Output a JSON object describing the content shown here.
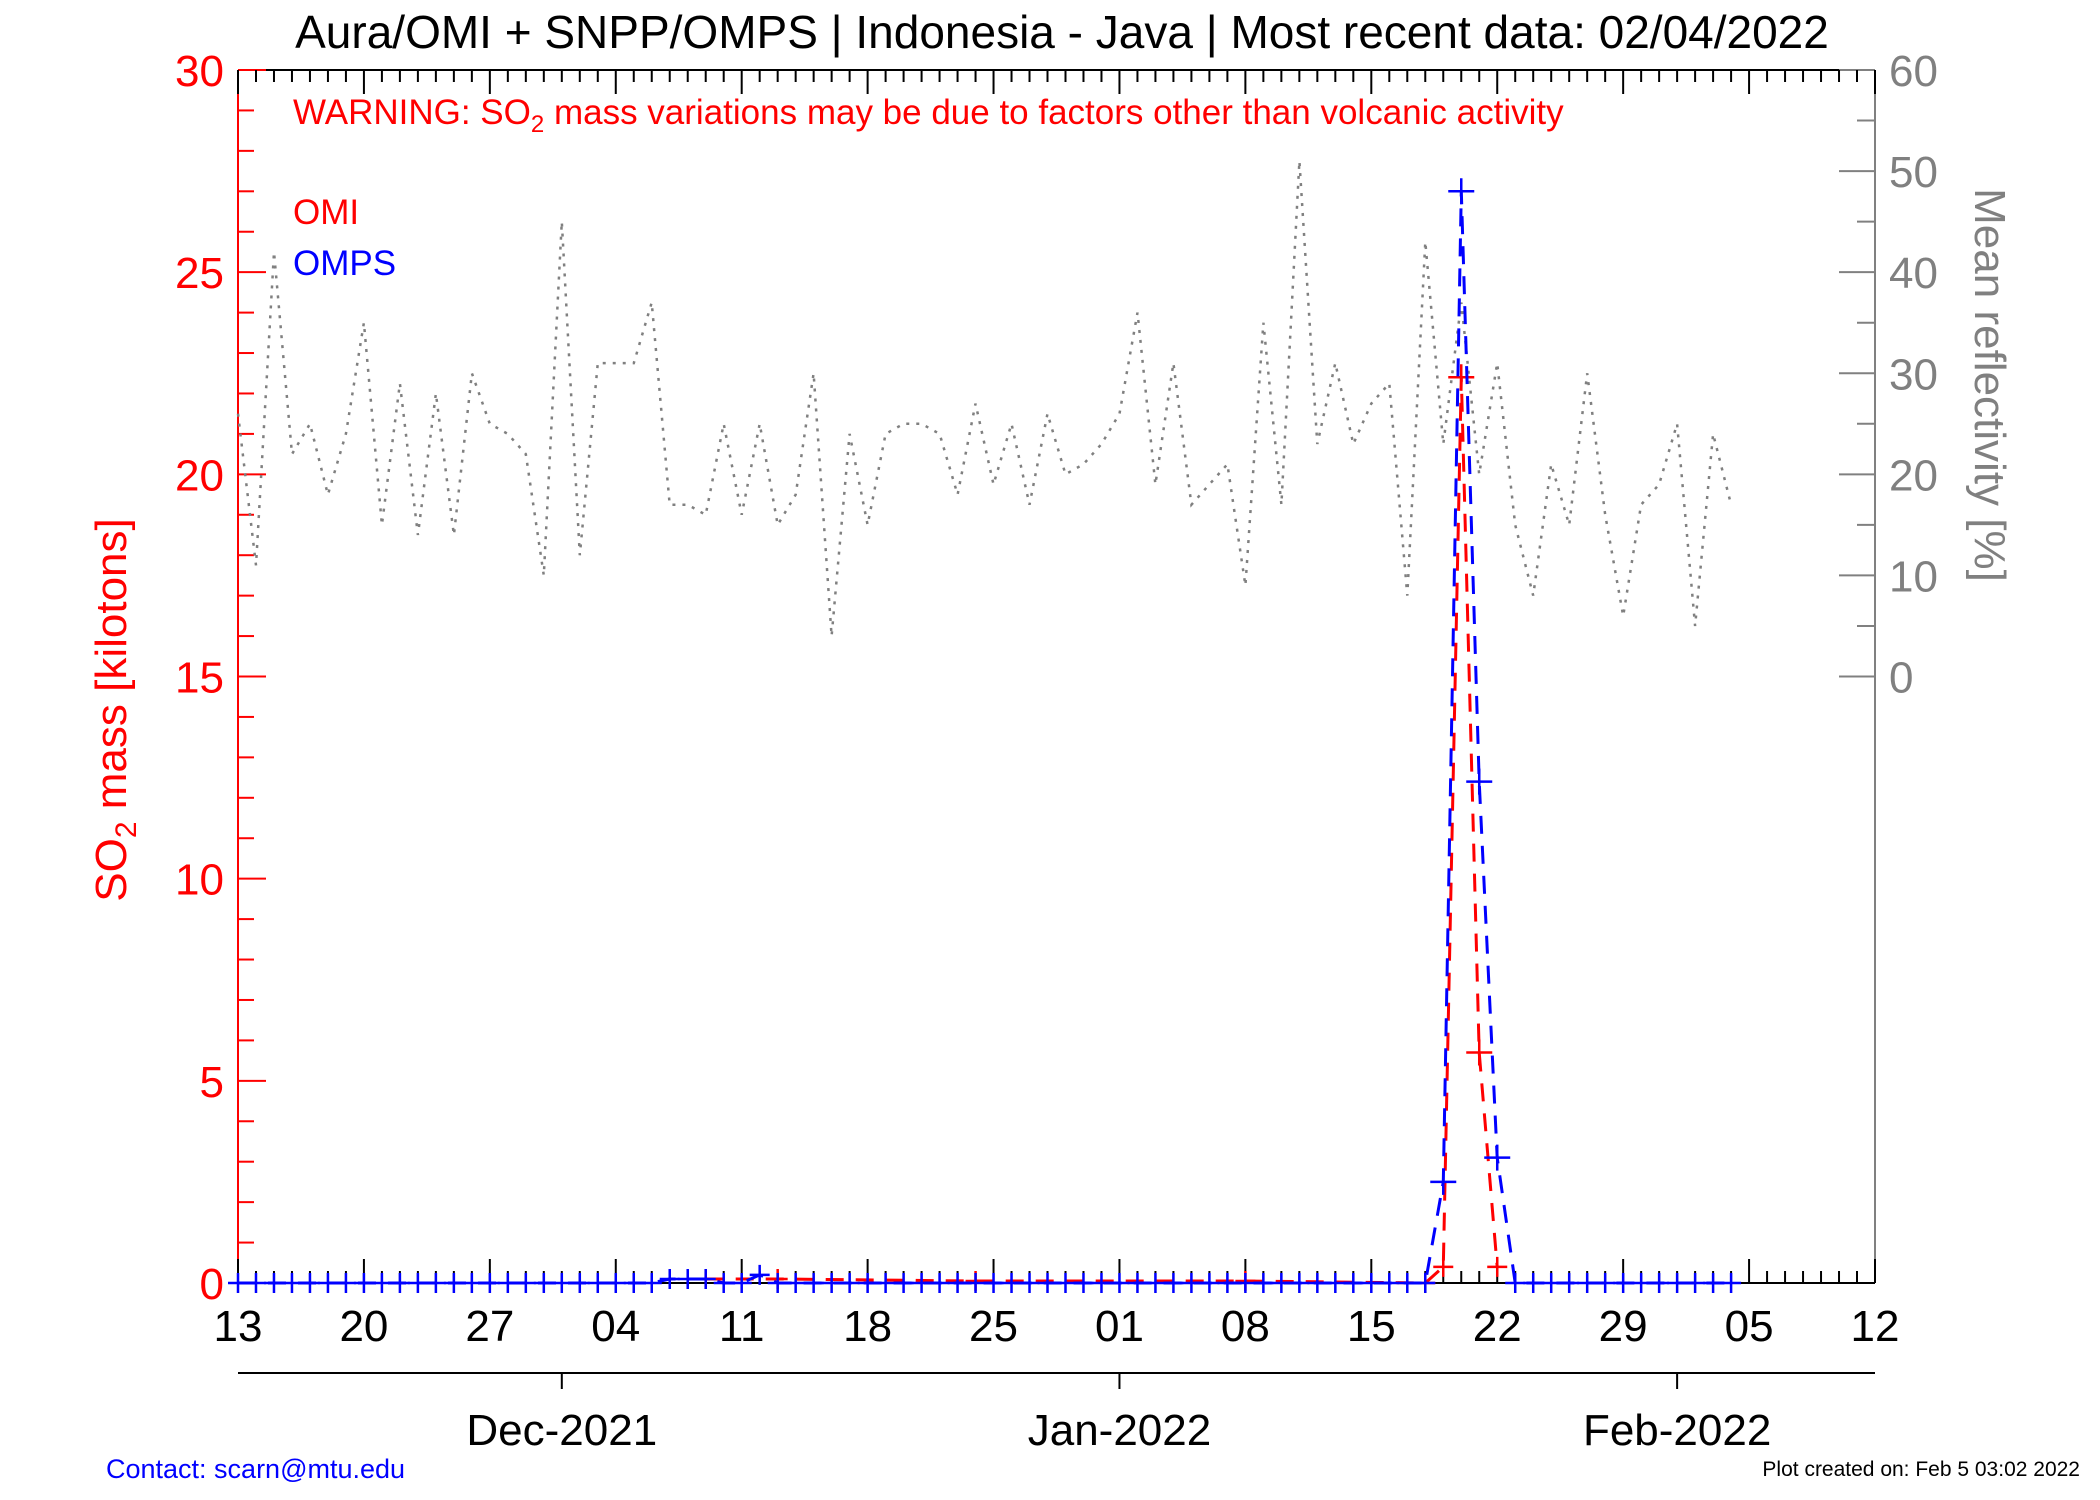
{
  "chart_data": {
    "type": "line",
    "title": "Aura/OMI + SNPP/OMPS | Indonesia - Java | Most recent data: 02/04/2022",
    "warning": {
      "prefix": "WARNING: SO",
      "subscript": "2",
      "suffix": " mass variations may be due to factors other than volcanic activity"
    },
    "ylabel_left": {
      "prefix": "SO",
      "subscript": "2",
      "suffix": " mass [kilotons]"
    },
    "ylabel_right": "Mean reflectivity [%]",
    "xlim": [
      "2021-11-13",
      "2022-02-12"
    ],
    "ylim_left": [
      0,
      30
    ],
    "ylim_right": [
      0,
      60
    ],
    "right_axis_zero_at_left_value": 15,
    "grid": false,
    "legend_position": "top-left",
    "x_ticks": [
      {
        "date": "2021-11-13",
        "label": "13"
      },
      {
        "date": "2021-11-20",
        "label": "20"
      },
      {
        "date": "2021-11-27",
        "label": "27"
      },
      {
        "date": "2021-12-04",
        "label": "04"
      },
      {
        "date": "2021-12-11",
        "label": "11"
      },
      {
        "date": "2021-12-18",
        "label": "18"
      },
      {
        "date": "2021-12-25",
        "label": "25"
      },
      {
        "date": "2022-01-01",
        "label": "01"
      },
      {
        "date": "2022-01-08",
        "label": "08"
      },
      {
        "date": "2022-01-15",
        "label": "15"
      },
      {
        "date": "2022-01-22",
        "label": "22"
      },
      {
        "date": "2022-01-29",
        "label": "29"
      },
      {
        "date": "2022-02-05",
        "label": "05"
      },
      {
        "date": "2022-02-12",
        "label": "12"
      }
    ],
    "month_labels": [
      {
        "date": "2021-12-01",
        "label": "Dec-2021"
      },
      {
        "date": "2022-01-01",
        "label": "Jan-2022"
      },
      {
        "date": "2022-02-01",
        "label": "Feb-2022"
      }
    ],
    "y_ticks_left": [
      "0",
      "5",
      "10",
      "15",
      "20",
      "25",
      "30"
    ],
    "y_ticks_right": [
      "0",
      "10",
      "20",
      "30",
      "40",
      "50",
      "60"
    ],
    "series": [
      {
        "name": "OMI",
        "color": "#ff0000",
        "style": "dashed",
        "marker": "plus",
        "x": [
          "2021-12-09",
          "2021-12-13",
          "2021-12-24",
          "2022-01-08",
          "2022-01-18",
          "2022-01-19",
          "2022-01-20",
          "2022-01-21",
          "2022-01-22"
        ],
        "y": [
          0.1,
          0.1,
          0.05,
          0.05,
          0.0,
          0.4,
          22.4,
          5.7,
          0.4
        ]
      },
      {
        "name": "OMPS",
        "color": "#0000ff",
        "style": "dashed",
        "marker": "plus",
        "x": [
          "2021-11-13",
          "2021-11-14",
          "2021-11-15",
          "2021-11-16",
          "2021-11-17",
          "2021-11-18",
          "2021-11-19",
          "2021-11-20",
          "2021-11-21",
          "2021-11-22",
          "2021-11-23",
          "2021-11-24",
          "2021-11-25",
          "2021-11-26",
          "2021-11-27",
          "2021-11-28",
          "2021-11-29",
          "2021-11-30",
          "2021-12-01",
          "2021-12-02",
          "2021-12-03",
          "2021-12-04",
          "2021-12-05",
          "2021-12-06",
          "2021-12-07",
          "2021-12-08",
          "2021-12-09",
          "2021-12-10",
          "2021-12-11",
          "2021-12-12",
          "2021-12-13",
          "2021-12-14",
          "2021-12-15",
          "2021-12-16",
          "2021-12-17",
          "2021-12-18",
          "2021-12-19",
          "2021-12-20",
          "2021-12-21",
          "2021-12-22",
          "2021-12-23",
          "2021-12-24",
          "2021-12-25",
          "2021-12-26",
          "2021-12-27",
          "2021-12-28",
          "2021-12-29",
          "2021-12-30",
          "2021-12-31",
          "2022-01-01",
          "2022-01-02",
          "2022-01-03",
          "2022-01-04",
          "2022-01-05",
          "2022-01-06",
          "2022-01-07",
          "2022-01-08",
          "2022-01-09",
          "2022-01-10",
          "2022-01-11",
          "2022-01-12",
          "2022-01-13",
          "2022-01-14",
          "2022-01-15",
          "2022-01-16",
          "2022-01-17",
          "2022-01-18",
          "2022-01-19",
          "2022-01-20",
          "2022-01-21",
          "2022-01-22",
          "2022-01-23",
          "2022-01-24",
          "2022-01-25",
          "2022-01-26",
          "2022-01-27",
          "2022-01-28",
          "2022-01-29",
          "2022-01-30",
          "2022-01-31",
          "2022-02-01",
          "2022-02-02",
          "2022-02-03",
          "2022-02-04"
        ],
        "y": [
          0,
          0,
          0,
          0,
          0,
          0,
          0,
          0,
          0,
          0,
          0,
          0,
          0,
          0,
          0,
          0,
          0,
          0,
          0,
          0,
          0,
          0,
          0,
          0,
          0.1,
          0.1,
          0.1,
          0,
          0,
          0.2,
          0,
          0,
          0,
          0,
          0,
          0,
          0,
          0,
          0,
          0,
          0,
          0,
          0,
          0,
          0,
          0,
          0,
          0,
          0,
          0,
          0,
          0,
          0,
          0,
          0,
          0,
          0,
          0,
          0,
          0,
          0,
          0,
          0,
          0,
          0,
          0,
          0,
          2.5,
          27.0,
          12.4,
          3.1,
          0,
          0,
          0,
          0,
          0,
          0,
          0,
          0,
          0,
          0,
          0,
          0,
          0
        ]
      },
      {
        "name": "",
        "axis": "right",
        "color": "#808080",
        "style": "dotted",
        "x": [
          "2021-11-13",
          "2021-11-14",
          "2021-11-15",
          "2021-11-16",
          "2021-11-17",
          "2021-11-18",
          "2021-11-19",
          "2021-11-20",
          "2021-11-21",
          "2021-11-22",
          "2021-11-23",
          "2021-11-24",
          "2021-11-25",
          "2021-11-26",
          "2021-11-27",
          "2021-11-28",
          "2021-11-29",
          "2021-11-30",
          "2021-12-01",
          "2021-12-02",
          "2021-12-03",
          "2021-12-04",
          "2021-12-05",
          "2021-12-06",
          "2021-12-07",
          "2021-12-08",
          "2021-12-09",
          "2021-12-10",
          "2021-12-11",
          "2021-12-12",
          "2021-12-13",
          "2021-12-14",
          "2021-12-15",
          "2021-12-16",
          "2021-12-17",
          "2021-12-18",
          "2021-12-19",
          "2021-12-20",
          "2021-12-21",
          "2021-12-22",
          "2021-12-23",
          "2021-12-24",
          "2021-12-25",
          "2021-12-26",
          "2021-12-27",
          "2021-12-28",
          "2021-12-29",
          "2021-12-30",
          "2021-12-31",
          "2022-01-01",
          "2022-01-02",
          "2022-01-03",
          "2022-01-04",
          "2022-01-05",
          "2022-01-06",
          "2022-01-07",
          "2022-01-08",
          "2022-01-09",
          "2022-01-10",
          "2022-01-11",
          "2022-01-12",
          "2022-01-13",
          "2022-01-14",
          "2022-01-15",
          "2022-01-16",
          "2022-01-17",
          "2022-01-18",
          "2022-01-19",
          "2022-01-20",
          "2022-01-21",
          "2022-01-22",
          "2022-01-23",
          "2022-01-24",
          "2022-01-25",
          "2022-01-26",
          "2022-01-27",
          "2022-01-28",
          "2022-01-29",
          "2022-01-30",
          "2022-01-31",
          "2022-02-01",
          "2022-02-02",
          "2022-02-03",
          "2022-02-04"
        ],
        "y": [
          26,
          11,
          42,
          22,
          25,
          18,
          24,
          35,
          15,
          29,
          14,
          28,
          14,
          30,
          25,
          24,
          22,
          10,
          45,
          12,
          31,
          31,
          31,
          37,
          17,
          17,
          16,
          25,
          16,
          25,
          15,
          18,
          30,
          4,
          24,
          15,
          24,
          25,
          25,
          24,
          18,
          27,
          19,
          25,
          17,
          26,
          20,
          21,
          23,
          26,
          36,
          19,
          31,
          17,
          19,
          21,
          9,
          35,
          17,
          51,
          23,
          31,
          23,
          27,
          29,
          8,
          43,
          23,
          37,
          20,
          31,
          15,
          8,
          21,
          15,
          30,
          16,
          6,
          17,
          19,
          25,
          5,
          24,
          17
        ]
      }
    ]
  },
  "footer": {
    "contact": "Contact: scarn@mtu.edu",
    "created": "Plot created on: Feb  5 03:02 2022"
  }
}
